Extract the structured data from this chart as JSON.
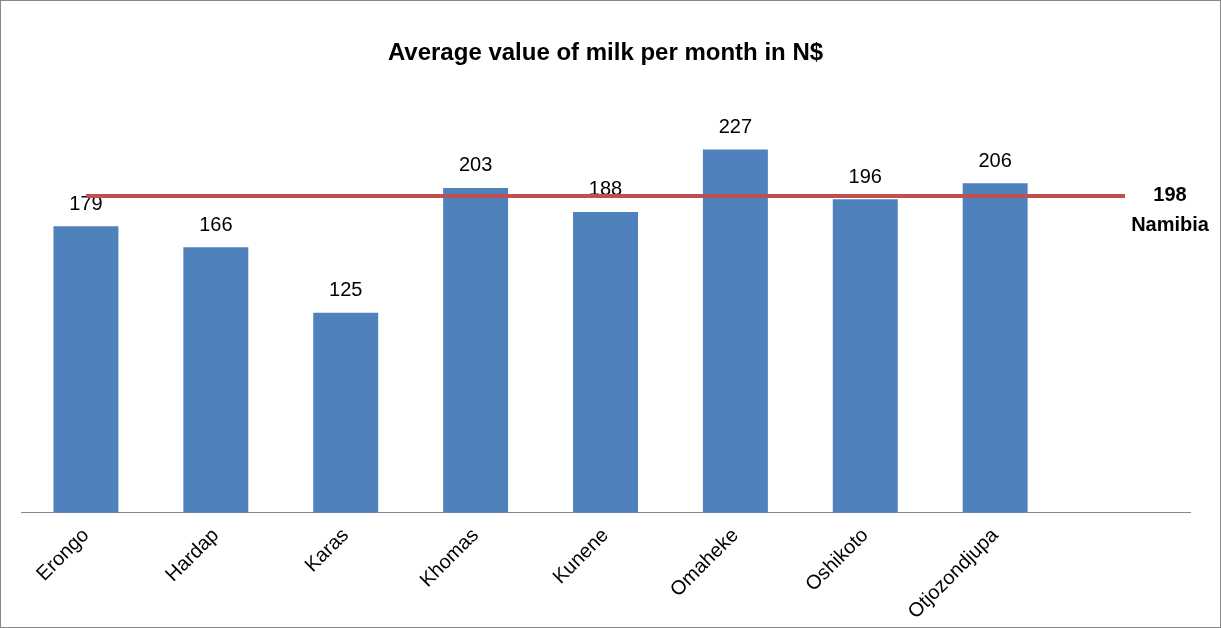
{
  "chart_data": {
    "type": "bar",
    "title": "Average value of milk per month in N$",
    "categories": [
      "Erongo",
      "Hardap",
      "Karas",
      "Khomas",
      "Kunene",
      "Omaheke",
      "Oshikoto",
      "Otjozondjupa",
      null
    ],
    "values": [
      179,
      166,
      125,
      203,
      188,
      227,
      196,
      206,
      null
    ],
    "color": "#4f81bd",
    "data_labels": true,
    "grid": false,
    "legend": false,
    "tick_labels": "x",
    "ref_lines": [
      {
        "axis": "y",
        "value": 198,
        "label": "198\nNamibia",
        "color": "#c0504d"
      }
    ]
  }
}
